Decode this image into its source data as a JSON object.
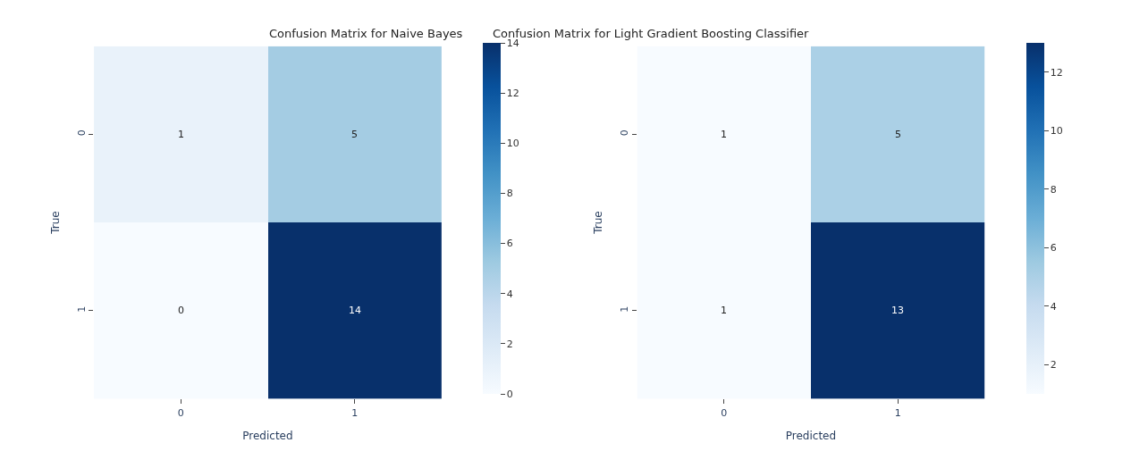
{
  "chart_data": [
    {
      "type": "heatmap",
      "title": "Confusion Matrix for Naive Bayes",
      "xlabel": "Predicted",
      "ylabel": "True",
      "categories": [
        "0",
        "1"
      ],
      "y_categories": [
        "0",
        "1"
      ],
      "cells": [
        [
          1,
          5
        ],
        [
          0,
          14
        ]
      ],
      "data_labels": true,
      "clim": [
        0,
        14
      ],
      "cticks": [
        0,
        2,
        4,
        6,
        8,
        10,
        12,
        14
      ]
    },
    {
      "type": "heatmap",
      "title": "Confusion Matrix for Light Gradient Boosting Classifier",
      "xlabel": "Predicted",
      "ylabel": "True",
      "categories": [
        "0",
        "1"
      ],
      "y_categories": [
        "0",
        "1"
      ],
      "cells": [
        [
          1,
          5
        ],
        [
          1,
          13
        ]
      ],
      "data_labels": true,
      "clim": [
        1,
        13
      ],
      "cticks": [
        2,
        4,
        6,
        8,
        10,
        12
      ]
    }
  ]
}
